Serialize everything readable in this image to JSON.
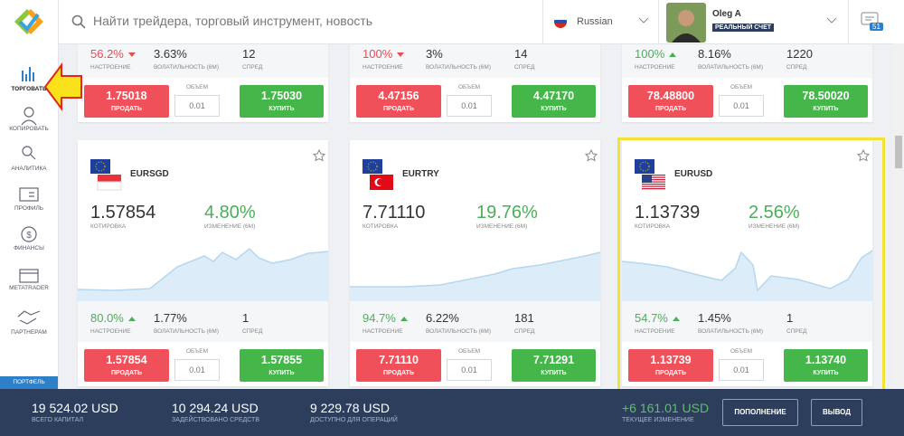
{
  "header": {
    "search_placeholder": "Найти трейдера, торговый инструмент, новость",
    "language": "Russian",
    "user_name": "Oleg A",
    "account_type": "РЕАЛЬНЫЙ СЧЕТ",
    "notifications": "51"
  },
  "sidebar": {
    "items": [
      "ТОРГОВАТЬ",
      "КОПИРОВАТЬ",
      "АНАЛИТИКА",
      "ПРОФИЛЬ",
      "ФИНАНСЫ",
      "METATRADER",
      "ПАРТНЕРАМ"
    ],
    "portfolio": "ПОРТФЕЛЬ"
  },
  "labels": {
    "sentiment": "НАСТРОЕНИЕ",
    "volatility": "ВОЛАТИЛЬНОСТЬ (6M)",
    "spread": "СПРЕД",
    "quote": "КОТИРОВКА",
    "change": "ИЗМЕНЕНИЕ (6M)",
    "volume": "ОБЪЕМ",
    "sell": "ПРОДАТЬ",
    "buy": "КУПИТЬ"
  },
  "cards": [
    {
      "sentiment": "56.2%",
      "trend": "down",
      "volatility": "3.63%",
      "spread": "12",
      "sell": "1.75018",
      "volume": "0.01",
      "buy": "1.75030"
    },
    {
      "sentiment": "100%",
      "trend": "down",
      "volatility": "3%",
      "spread": "14",
      "sell": "4.47156",
      "volume": "0.01",
      "buy": "4.47170"
    },
    {
      "sentiment": "100%",
      "trend": "up",
      "volatility": "8.16%",
      "spread": "1220",
      "sell": "78.48800",
      "volume": "0.01",
      "buy": "78.50020"
    },
    {
      "pair": "EURSGD",
      "price": "1.57854",
      "change": "4.80%",
      "sentiment": "80.0%",
      "trend": "up",
      "volatility": "1.77%",
      "spread": "1",
      "sell": "1.57854",
      "volume": "0.01",
      "buy": "1.57855"
    },
    {
      "pair": "EURTRY",
      "price": "7.71110",
      "change": "19.76%",
      "sentiment": "94.7%",
      "trend": "up",
      "volatility": "6.22%",
      "spread": "181",
      "sell": "7.71110",
      "volume": "0.01",
      "buy": "7.71291"
    },
    {
      "pair": "EURUSD",
      "price": "1.13739",
      "change": "2.56%",
      "sentiment": "54.7%",
      "trend": "up",
      "volatility": "1.45%",
      "spread": "1",
      "sell": "1.13739",
      "volume": "0.01",
      "buy": "1.13740"
    }
  ],
  "footer": {
    "stats": [
      {
        "value": "19 524.02 USD",
        "label": "ВСЕГО КАПИТАЛ"
      },
      {
        "value": "10 294.24 USD",
        "label": "ЗАДЕЙСТВОВАНО СРЕДСТВ"
      },
      {
        "value": "9 229.78 USD",
        "label": "ДОСТУПНО ДЛЯ ОПЕРАЦИЙ"
      }
    ],
    "current_change": {
      "value": "+6 161.01 USD",
      "label": "ТЕКУЩЕЕ ИЗМЕНЕНИЕ"
    },
    "deposit": "ПОПОЛНЕНИЕ",
    "withdraw": "ВЫВОД"
  }
}
